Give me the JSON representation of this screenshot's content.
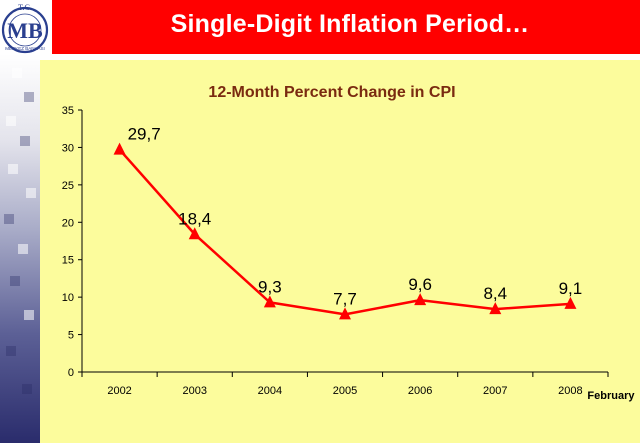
{
  "header": {
    "title": "Single-Digit Inflation Period…"
  },
  "logo": {
    "top_text": "T.C.",
    "monogram": "MB",
    "ring_text": "MERKEZ BANKASI"
  },
  "colors": {
    "header": "#ff0000",
    "panel": "#fcfc9c",
    "series": "#ff0000",
    "sidebar_dark": "#2a2c6c"
  },
  "chart_data": {
    "type": "line",
    "title": "12-Month Percent Change in CPI",
    "xlabel": "",
    "ylabel": "",
    "categories": [
      "2002",
      "2003",
      "2004",
      "2005",
      "2006",
      "2007",
      "2008"
    ],
    "category_note": "February",
    "series": [
      {
        "values": [
          29.7,
          18.4,
          9.3,
          7.7,
          9.6,
          8.4,
          9.1
        ],
        "data_labels": [
          "29,7",
          "18,4",
          "9,3",
          "7,7",
          "9,6",
          "8,4",
          "9,1"
        ],
        "marker": "triangle"
      }
    ],
    "ylim": [
      0,
      35
    ],
    "yticks": [
      "0",
      "5",
      "10",
      "15",
      "20",
      "25",
      "30",
      "35"
    ],
    "grid": false,
    "legend": "none"
  }
}
